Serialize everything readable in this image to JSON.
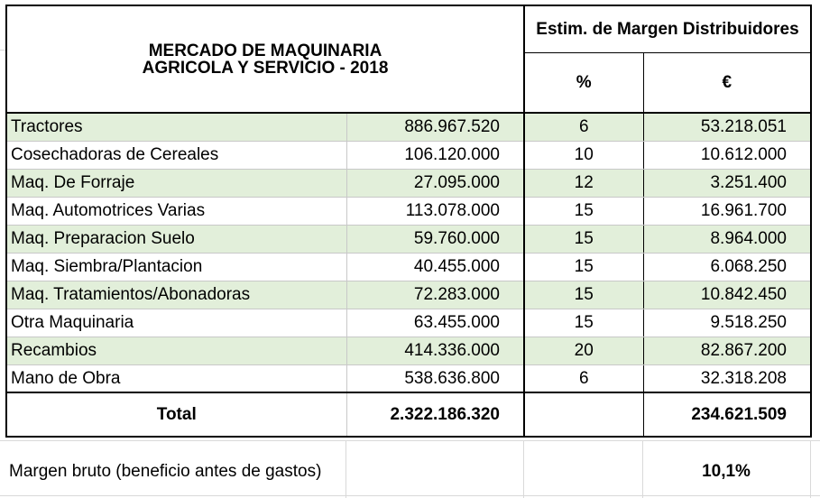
{
  "header": {
    "title": "MERCADO DE MAQUINARIA AGRICOLA Y SERVICIO - 2018",
    "margin_header": "Estim. de Margen  Distribuidores",
    "col_percent": "%",
    "col_euro": "€"
  },
  "rows": [
    {
      "label": "Tractores",
      "market": "886.967.520",
      "percent": "6",
      "margin": "53.218.051"
    },
    {
      "label": "Cosechadoras de Cereales",
      "market": "106.120.000",
      "percent": "10",
      "margin": "10.612.000"
    },
    {
      "label": "Maq. De Forraje",
      "market": "27.095.000",
      "percent": "12",
      "margin": "3.251.400"
    },
    {
      "label": "Maq. Automotrices Varias",
      "market": "113.078.000",
      "percent": "15",
      "margin": "16.961.700"
    },
    {
      "label": "Maq. Preparacion Suelo",
      "market": "59.760.000",
      "percent": "15",
      "margin": "8.964.000"
    },
    {
      "label": "Maq. Siembra/Plantacion",
      "market": "40.455.000",
      "percent": "15",
      "margin": "6.068.250"
    },
    {
      "label": "Maq. Tratamientos/Abonadoras",
      "market": "72.283.000",
      "percent": "15",
      "margin": "10.842.450"
    },
    {
      "label": "Otra Maquinaria",
      "market": "63.455.000",
      "percent": "15",
      "margin": "9.518.250"
    },
    {
      "label": "Recambios",
      "market": "414.336.000",
      "percent": "20",
      "margin": "82.867.200"
    },
    {
      "label": "Mano de Obra",
      "market": "538.636.800",
      "percent": "6",
      "margin": "32.318.208"
    }
  ],
  "total": {
    "label": "Total",
    "market": "2.322.186.320",
    "margin": "234.621.509"
  },
  "footer": {
    "label": "Margen bruto (beneficio antes de gastos)",
    "value": "10,1%"
  },
  "colors": {
    "row_highlight": "#e2efda",
    "gridline": "#d9d9d9"
  }
}
